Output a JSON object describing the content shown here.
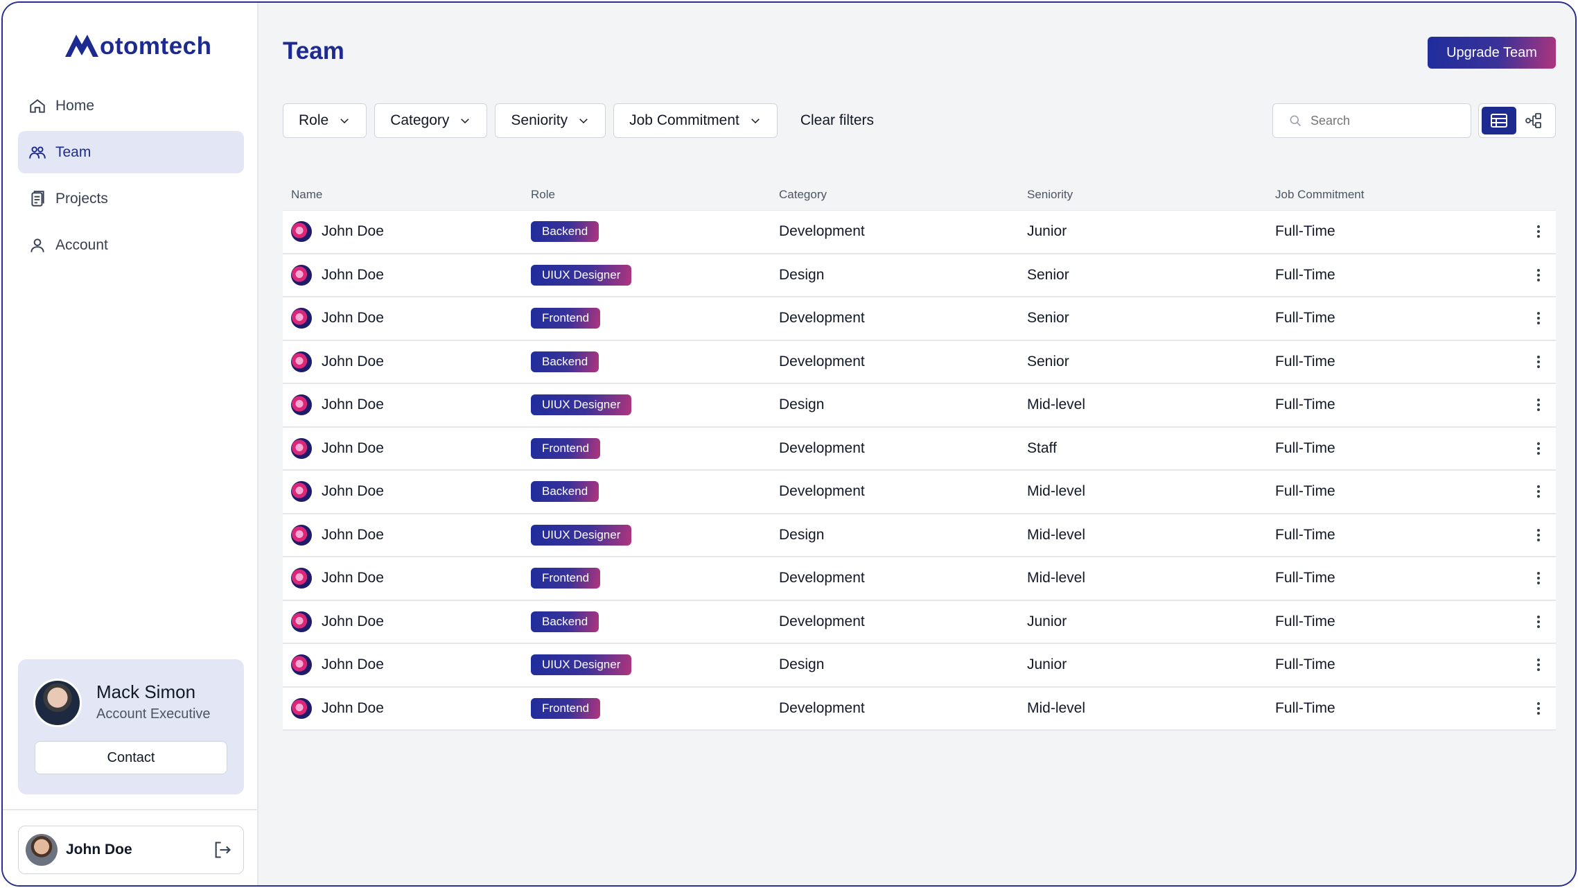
{
  "brand": {
    "logo_text": "otomtech",
    "logo_initial_icon": "mountain-m-icon"
  },
  "sidebar": {
    "items": [
      {
        "label": "Home",
        "icon": "home-icon"
      },
      {
        "label": "Team",
        "icon": "users-icon",
        "active": true
      },
      {
        "label": "Projects",
        "icon": "document-icon"
      },
      {
        "label": "Account",
        "icon": "user-icon"
      }
    ],
    "contact": {
      "name": "Mack Simon",
      "role": "Account Executive",
      "button": "Contact"
    },
    "user": {
      "name": "John Doe",
      "logout_icon": "logout-icon"
    }
  },
  "header": {
    "title": "Team",
    "upgrade_label": "Upgrade Team"
  },
  "filters": {
    "items": [
      "Role",
      "Category",
      "Seniority",
      "Job Commitment"
    ],
    "clear_label": "Clear filters",
    "search_placeholder": "Search"
  },
  "table": {
    "columns": [
      "Name",
      "Role",
      "Category",
      "Seniority",
      "Job Commitment"
    ],
    "rows": [
      {
        "name": "John Doe",
        "role": "Backend",
        "category": "Development",
        "seniority": "Junior",
        "commitment": "Full-Time"
      },
      {
        "name": "John Doe",
        "role": "UIUX Designer",
        "category": "Design",
        "seniority": "Senior",
        "commitment": "Full-Time"
      },
      {
        "name": "John Doe",
        "role": "Frontend",
        "category": "Development",
        "seniority": "Senior",
        "commitment": "Full-Time"
      },
      {
        "name": "John Doe",
        "role": "Backend",
        "category": "Development",
        "seniority": "Senior",
        "commitment": "Full-Time"
      },
      {
        "name": "John Doe",
        "role": "UIUX Designer",
        "category": "Design",
        "seniority": "Mid-level",
        "commitment": "Full-Time"
      },
      {
        "name": "John Doe",
        "role": "Frontend",
        "category": "Development",
        "seniority": "Staff",
        "commitment": "Full-Time"
      },
      {
        "name": "John Doe",
        "role": "Backend",
        "category": "Development",
        "seniority": "Mid-level",
        "commitment": "Full-Time"
      },
      {
        "name": "John Doe",
        "role": "UIUX Designer",
        "category": "Design",
        "seniority": "Mid-level",
        "commitment": "Full-Time"
      },
      {
        "name": "John Doe",
        "role": "Frontend",
        "category": "Development",
        "seniority": "Mid-level",
        "commitment": "Full-Time"
      },
      {
        "name": "John Doe",
        "role": "Backend",
        "category": "Development",
        "seniority": "Junior",
        "commitment": "Full-Time"
      },
      {
        "name": "John Doe",
        "role": "UIUX Designer",
        "category": "Design",
        "seniority": "Junior",
        "commitment": "Full-Time"
      },
      {
        "name": "John Doe",
        "role": "Frontend",
        "category": "Development",
        "seniority": "Mid-level",
        "commitment": "Full-Time"
      }
    ]
  },
  "colors": {
    "brand": "#1d2a8f",
    "accent_gradient_end": "#b0357d",
    "active_nav_bg": "#e3e6f5"
  }
}
